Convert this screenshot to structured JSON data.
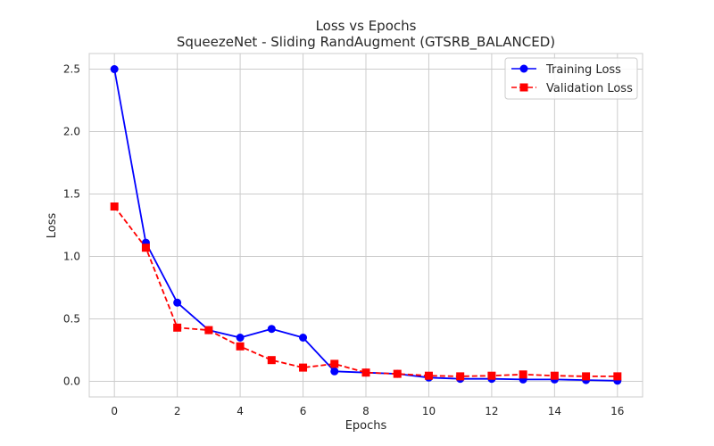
{
  "chart_data": {
    "type": "line",
    "title": "Loss vs Epochs",
    "subtitle": "SqueezeNet - Sliding RandAugment (GTSRB_BALANCED)",
    "xlabel": "Epochs",
    "ylabel": "Loss",
    "xlim": [
      -0.8,
      16.8
    ],
    "ylim": [
      -0.125,
      2.625
    ],
    "xticks": [
      0,
      2,
      4,
      6,
      8,
      10,
      12,
      14,
      16
    ],
    "yticks": [
      0.0,
      0.5,
      1.0,
      1.5,
      2.0,
      2.5
    ],
    "xtick_labels": [
      "0",
      "2",
      "4",
      "6",
      "8",
      "10",
      "12",
      "14",
      "16"
    ],
    "ytick_labels": [
      "0.0",
      "0.5",
      "1.0",
      "1.5",
      "2.0",
      "2.5"
    ],
    "grid": true,
    "legend_position": "top-right",
    "x": [
      0,
      1,
      2,
      3,
      4,
      5,
      6,
      7,
      8,
      9,
      10,
      11,
      12,
      13,
      14,
      15,
      16
    ],
    "series": [
      {
        "name": "Training Loss",
        "color": "#0000ff",
        "line_style": "solid",
        "marker": "circle",
        "values": [
          2.5,
          1.11,
          0.63,
          0.41,
          0.35,
          0.42,
          0.35,
          0.08,
          0.07,
          0.06,
          0.03,
          0.02,
          0.02,
          0.015,
          0.015,
          0.01,
          0.005
        ]
      },
      {
        "name": "Validation Loss",
        "color": "#ff0000",
        "line_style": "dashed",
        "marker": "square",
        "values": [
          1.4,
          1.07,
          0.43,
          0.41,
          0.28,
          0.17,
          0.11,
          0.14,
          0.07,
          0.06,
          0.045,
          0.04,
          0.045,
          0.055,
          0.045,
          0.04,
          0.04
        ]
      }
    ]
  }
}
